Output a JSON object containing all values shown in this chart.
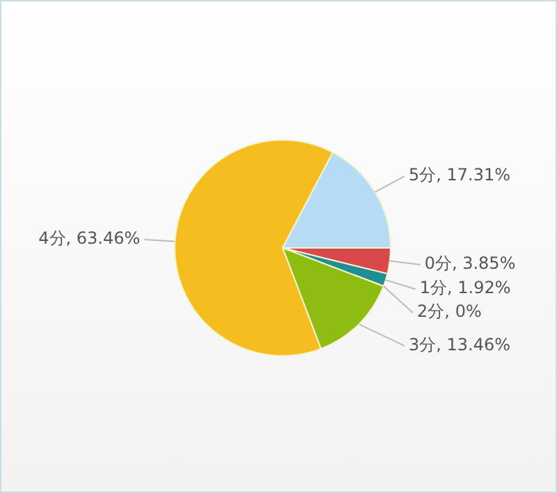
{
  "chart_data": {
    "type": "pie",
    "categories": [
      "0分",
      "1分",
      "2分",
      "3分",
      "4分",
      "5分"
    ],
    "values": [
      3.85,
      1.92,
      0,
      13.46,
      63.46,
      17.31
    ],
    "colors": [
      "#d9494b",
      "#1f8f93",
      "#7b5ea7",
      "#8fbc12",
      "#f5bd1f",
      "#b6dbf5"
    ],
    "value_labels": [
      ", 3.85%",
      ", 1.92%",
      ", 0%",
      ", 13.46%",
      ", 63.46%",
      ", 17.31%"
    ],
    "legend": false
  }
}
